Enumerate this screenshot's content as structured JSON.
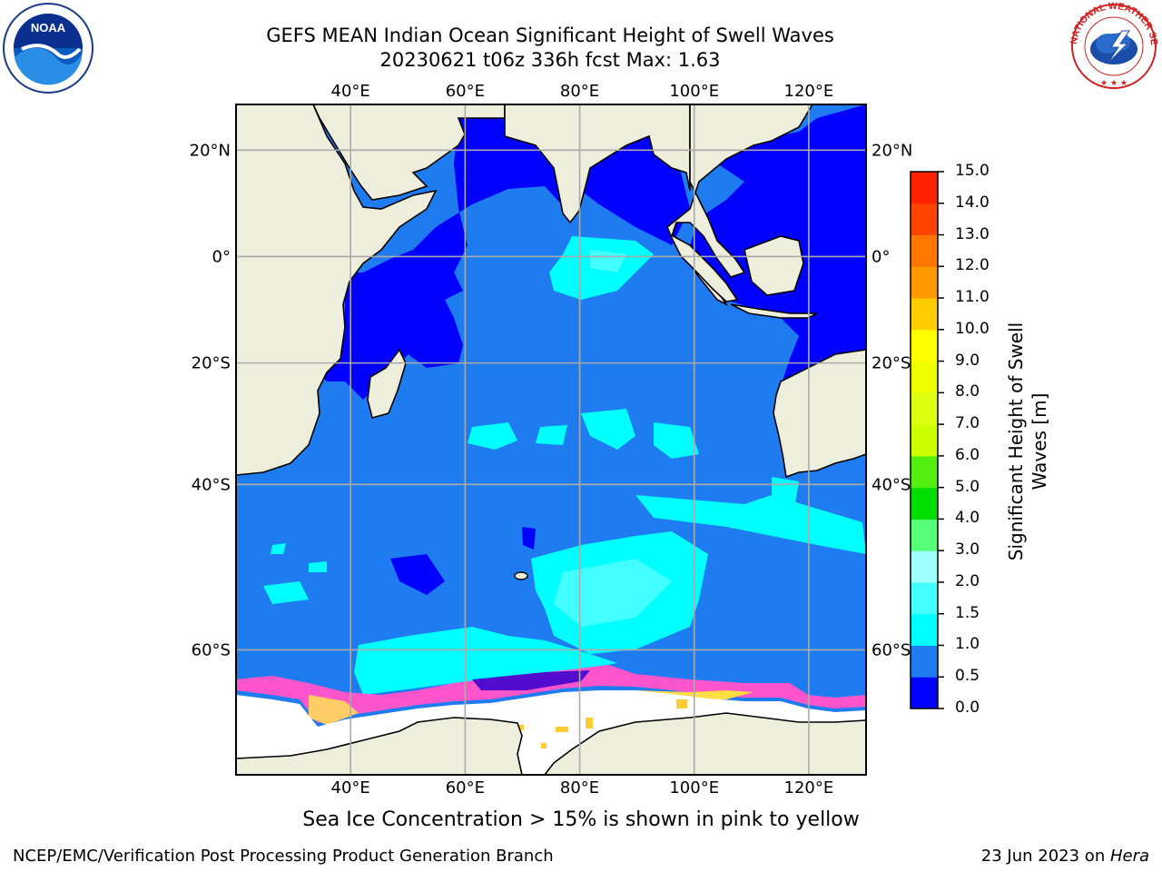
{
  "title": {
    "line1": "GEFS MEAN Indian Ocean Significant Height of Swell Waves",
    "line2": "20230621 t06z 336h fcst   Max: 1.63"
  },
  "map": {
    "extent": {
      "lon_min": 20,
      "lon_max": 130,
      "lat_min": -70,
      "lat_max": 28
    },
    "lon_ticks": [
      "40°E",
      "60°E",
      "80°E",
      "100°E",
      "120°E"
    ],
    "lat_ticks": [
      "20°N",
      "0°",
      "20°S",
      "40°S",
      "60°S"
    ],
    "grid": true,
    "land_color": "#eeeedd",
    "ocean_base_color": "#1e7cf0",
    "sea_ice_color": "#ffffff"
  },
  "colorbar": {
    "label": "Significant Height of Swell Waves [m]",
    "ticks": [
      "0.0",
      "0.5",
      "1.0",
      "1.5",
      "2.0",
      "3.0",
      "4.0",
      "5.0",
      "6.0",
      "7.0",
      "8.0",
      "9.0",
      "10.0",
      "11.0",
      "12.0",
      "13.0",
      "14.0",
      "15.0"
    ],
    "colors": [
      "#0000ff",
      "#1e7cf0",
      "#00ffff",
      "#44ffff",
      "#a0ffff",
      "#55ff77",
      "#00dd00",
      "#55ee11",
      "#ccff00",
      "#ddff11",
      "#eeff00",
      "#ffff00",
      "#ffcc00",
      "#ff9900",
      "#ff7700",
      "#ff4400",
      "#ff2200",
      "#ff0000"
    ]
  },
  "ice_note": "Sea Ice Concentration > 15% is shown in pink to yellow",
  "footer": {
    "left": "NCEP/EMC/Verification Post Processing Product Generation Branch",
    "right_prefix": "23 Jun 2023 on ",
    "right_machine": "Hera"
  },
  "logos": {
    "noaa": "NOAA",
    "nws": "NATIONAL WEATHER SERVICE"
  }
}
